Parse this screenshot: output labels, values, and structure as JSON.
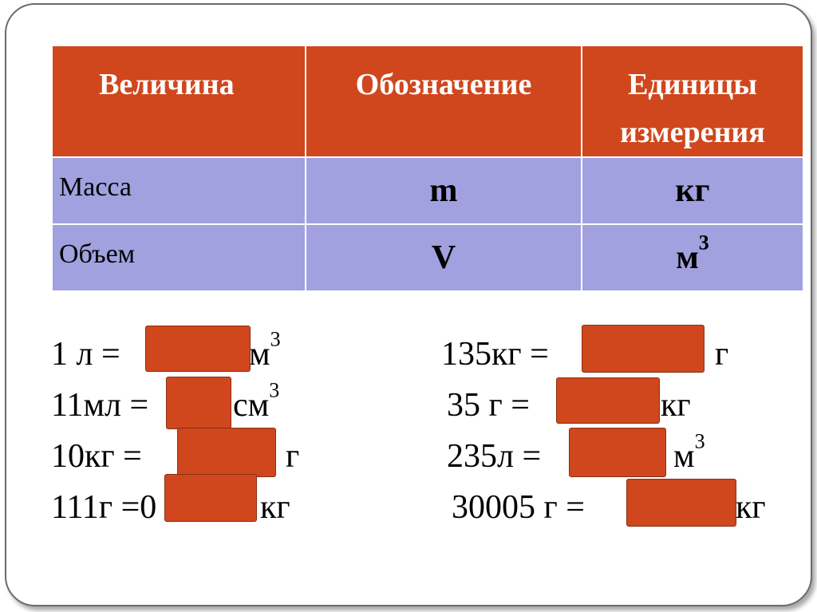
{
  "table": {
    "headers": [
      "Величина",
      "Обозначение",
      "Единицы измерения"
    ],
    "rows": [
      {
        "name": "Масса",
        "symbol": "m",
        "unit": "кг",
        "unit_sup": ""
      },
      {
        "name": "Объем",
        "symbol": "V",
        "unit": "м",
        "unit_sup": "3"
      }
    ]
  },
  "exercises": {
    "left": [
      {
        "left": "1 л = ",
        "right": "м",
        "sup": "3"
      },
      {
        "left": "11мл = ",
        "right": "см",
        "sup": "3"
      },
      {
        "left": "10кг = ",
        "right": "г",
        "sup": ""
      },
      {
        "left": "111г =0",
        "right": "кг",
        "sup": ""
      }
    ],
    "right": [
      {
        "left": "135кг = ",
        "right": "г",
        "sup": ""
      },
      {
        "left": "35 г = ",
        "right": "кг",
        "sup": ""
      },
      {
        "left": "235л = ",
        "right": "м",
        "sup": "3"
      },
      {
        "left": "30005 г = ",
        "right": "кг",
        "sup": ""
      }
    ]
  },
  "colors": {
    "header_bg": "#d0471d",
    "row_bg": "#a1a1df",
    "answer_cover": "#d0471d"
  }
}
